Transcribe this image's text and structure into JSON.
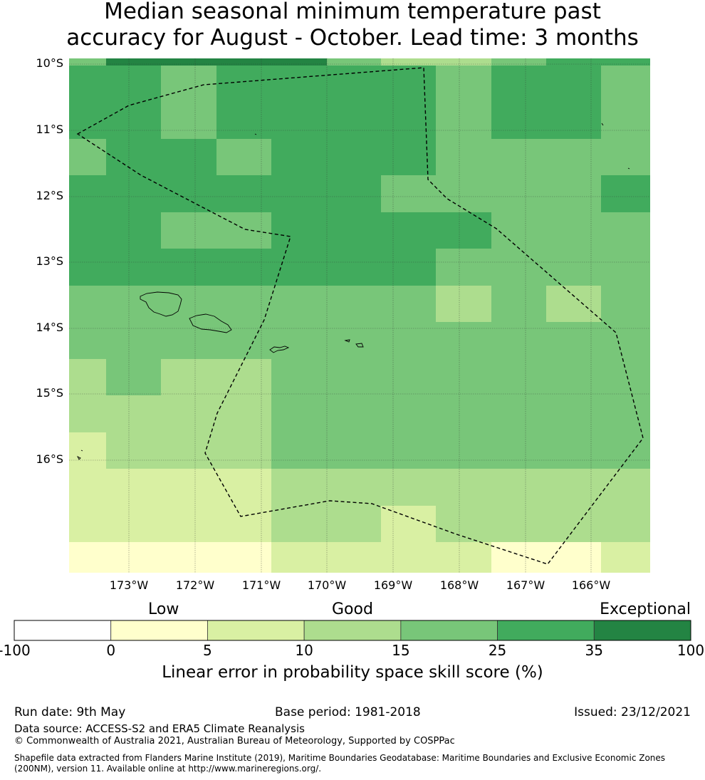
{
  "title": {
    "line1": "Median seasonal minimum temperature past",
    "line2": "accuracy for August - October. Lead time: 3 months"
  },
  "map": {
    "lat_labels": [
      "10°S",
      "11°S",
      "12°S",
      "13°S",
      "14°S",
      "15°S",
      "16°S"
    ],
    "lon_labels": [
      "173°W",
      "172°W",
      "171°W",
      "170°W",
      "169°W",
      "168°W",
      "167°W",
      "166°W"
    ],
    "grid": [
      [
        4,
        6,
        6,
        6,
        6,
        4,
        3,
        3,
        4,
        5,
        5,
        3
      ],
      [
        5,
        5,
        4,
        5,
        5,
        5,
        5,
        4,
        5,
        5,
        4,
        3
      ],
      [
        5,
        5,
        4,
        5,
        5,
        5,
        5,
        4,
        5,
        5,
        4,
        3
      ],
      [
        4,
        5,
        5,
        4,
        5,
        5,
        5,
        4,
        4,
        4,
        4,
        4
      ],
      [
        5,
        5,
        5,
        5,
        5,
        5,
        4,
        4,
        4,
        4,
        5,
        5
      ],
      [
        5,
        5,
        4,
        4,
        5,
        5,
        5,
        5,
        4,
        4,
        4,
        4
      ],
      [
        5,
        5,
        5,
        5,
        5,
        5,
        5,
        4,
        4,
        4,
        4,
        4
      ],
      [
        4,
        4,
        4,
        4,
        4,
        4,
        4,
        3,
        4,
        3,
        4,
        4
      ],
      [
        4,
        4,
        4,
        4,
        4,
        4,
        4,
        4,
        4,
        4,
        4,
        4
      ],
      [
        3,
        4,
        3,
        3,
        4,
        4,
        4,
        4,
        4,
        4,
        4,
        4
      ],
      [
        3,
        3,
        3,
        3,
        4,
        4,
        4,
        4,
        4,
        4,
        4,
        4
      ],
      [
        2,
        3,
        3,
        3,
        4,
        4,
        4,
        4,
        4,
        4,
        4,
        4
      ],
      [
        2,
        2,
        2,
        2,
        3,
        3,
        3,
        3,
        3,
        3,
        3,
        2
      ],
      [
        2,
        2,
        2,
        2,
        3,
        3,
        2,
        3,
        3,
        3,
        3,
        2
      ],
      [
        1,
        1,
        1,
        1,
        2,
        2,
        2,
        2,
        1,
        1,
        2,
        1
      ]
    ]
  },
  "legend": {
    "categories": [
      {
        "label": "Low",
        "anchor": "left"
      },
      {
        "label": "Good",
        "anchor": "center"
      },
      {
        "label": "Exceptional",
        "anchor": "right"
      }
    ],
    "bins": [
      {
        "from": "-100",
        "to": "0",
        "color": "#ffffff"
      },
      {
        "from": "0",
        "to": "5",
        "color": "#ffffcc"
      },
      {
        "from": "5",
        "to": "10",
        "color": "#d9f0a3"
      },
      {
        "from": "10",
        "to": "15",
        "color": "#addd8e"
      },
      {
        "from": "15",
        "to": "25",
        "color": "#78c679"
      },
      {
        "from": "25",
        "to": "35",
        "color": "#41ab5d"
      },
      {
        "from": "35",
        "to": "100",
        "color": "#238443"
      }
    ],
    "ticks": [
      "-100",
      "0",
      "5",
      "10",
      "15",
      "25",
      "35",
      "100"
    ],
    "label": "Linear error in probability space skill score (%)"
  },
  "footer": {
    "run_date": "Run date: 9th May",
    "base_period": "Base period: 1981-2018",
    "issued": "Issued: 23/12/2021",
    "data_source": "Data source: ACCESS-S2 and ERA5 Climate Reanalysis",
    "copyright": "© Commonwealth of Australia 2021, Australian Bureau of Meteorology, Supported by COSPPac",
    "shapefile_line1": "Shapefile data extracted from Flanders Marine Institute (2019), Maritime Boundaries Geodatabase: Maritime Boundaries and Exclusive Economic Zones",
    "shapefile_line2": "(200NM), version 11. Available online at http://www.marineregions.org/."
  }
}
